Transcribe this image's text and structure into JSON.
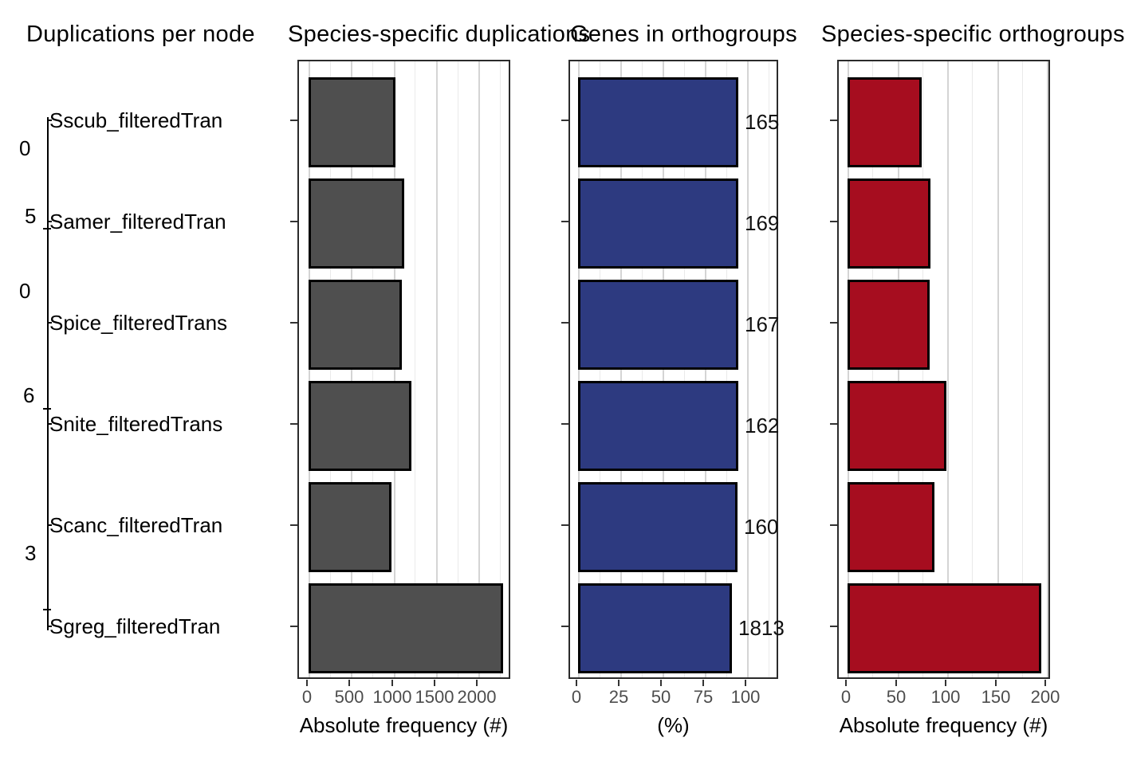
{
  "figure": {
    "titles": [
      "Duplications per node",
      "Species-specific duplications",
      "Genes in orthogroups",
      "Species-specific orthogroups"
    ]
  },
  "tree": {
    "tip_labels": [
      "Sscub_filteredTran",
      "Samer_filteredTran",
      "Spice_filteredTrans",
      "Snite_filteredTrans",
      "Scanc_filteredTran",
      "Sgreg_filteredTran"
    ],
    "node_label_fragments": [
      "0",
      "5",
      "0",
      "6",
      "3"
    ]
  },
  "chart_data": [
    {
      "type": "bar",
      "orientation": "horizontal",
      "title": "Species-specific duplications",
      "categories": [
        "Sscub_filteredTran",
        "Samer_filteredTran",
        "Spice_filteredTrans",
        "Snite_filteredTrans",
        "Scanc_filteredTran",
        "Sgreg_filteredTran"
      ],
      "values": [
        1020,
        1130,
        1095,
        1210,
        980,
        2290
      ],
      "xlabel": "Absolute frequency (#)",
      "xticks": [
        0,
        500,
        1000,
        1500,
        2000
      ],
      "xlim": [
        0,
        2390
      ],
      "grid": true,
      "legend": false,
      "bar_color": "#4f4f4f",
      "bar_labels": null
    },
    {
      "type": "bar",
      "orientation": "horizontal",
      "title": "Genes in orthogroups",
      "categories": [
        "Sscub_filteredTran",
        "Samer_filteredTran",
        "Spice_filteredTrans",
        "Snite_filteredTrans",
        "Scanc_filteredTran",
        "Sgreg_filteredTran"
      ],
      "values": [
        94.8,
        94.8,
        94.6,
        94.8,
        94.3,
        91.2
      ],
      "xlabel": "(%)",
      "xticks": [
        0,
        25,
        50,
        75,
        100
      ],
      "xlim": [
        0,
        119
      ],
      "grid": true,
      "legend": false,
      "bar_color": "#2d3a80",
      "bar_labels": [
        "165",
        "169",
        "167",
        "162",
        "160",
        "1813"
      ]
    },
    {
      "type": "bar",
      "orientation": "horizontal",
      "title": "Species-specific orthogroups",
      "categories": [
        "Sscub_filteredTran",
        "Samer_filteredTran",
        "Spice_filteredTrans",
        "Snite_filteredTrans",
        "Scanc_filteredTran",
        "Sgreg_filteredTran"
      ],
      "values": [
        74,
        83,
        82,
        99,
        87,
        194
      ],
      "xlabel": "Absolute frequency (#)",
      "xticks": [
        0,
        50,
        100,
        150,
        200
      ],
      "xlim": [
        0,
        205
      ],
      "grid": true,
      "legend": false,
      "bar_color": "#a60d1f",
      "bar_labels": null
    }
  ]
}
